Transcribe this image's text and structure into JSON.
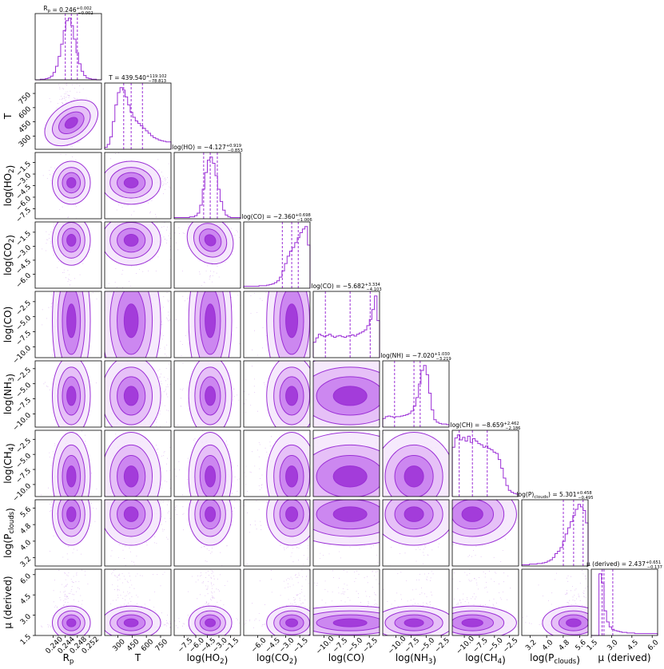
{
  "chart_data": {
    "type": "corner",
    "color": "#9b2fd6",
    "fill_colors": [
      "#f5e6fc",
      "#e3b9f6",
      "#c77cee",
      "#9b2fd6"
    ],
    "params": [
      {
        "key": "Rp",
        "xlabel": "R_p",
        "title": "R_p = 0.246^{+0.002}_{-0.002}",
        "title_parts": {
          "name": "R_p",
          "value": "0.246",
          "up": "+0.002",
          "down": "−0.002"
        },
        "range": [
          0.234,
          0.256
        ],
        "ticks": [
          0.24,
          0.244,
          0.248,
          0.252
        ],
        "tick_labels": [
          "0.240",
          "0.244",
          "0.248",
          "0.252"
        ],
        "median": 0.246,
        "q16": 0.244,
        "q84": 0.248,
        "hist": [
          0,
          0,
          1,
          1,
          2,
          3,
          6,
          12,
          22,
          38,
          58,
          80,
          96,
          100,
          88,
          66,
          44,
          26,
          14,
          7,
          3,
          2,
          1,
          1,
          0,
          0
        ]
      },
      {
        "key": "T",
        "xlabel": "T",
        "title": "T = 439.540^{+119.102}_{-78.813}",
        "title_parts": {
          "name": "T",
          "value": "439.540",
          "up": "+119.102",
          "down": "−78.813"
        },
        "range": [
          160,
          860
        ],
        "ticks": [
          300,
          450,
          600,
          750
        ],
        "tick_labels": [
          "300",
          "450",
          "600",
          "750"
        ],
        "median": 439.54,
        "q16": 360.7,
        "q84": 558.6,
        "hist": [
          3,
          8,
          20,
          45,
          72,
          92,
          100,
          96,
          85,
          72,
          60,
          52,
          46,
          42,
          38,
          34,
          30,
          26,
          22,
          19,
          17,
          15,
          14,
          13,
          12,
          12
        ]
      },
      {
        "key": "H2O",
        "xlabel": "log(H2O)",
        "title": "log(H2O) = −4.127^{+0.919}_{-0.853}",
        "title_parts": {
          "name": "log(H2O)",
          "value": "−4.127",
          "up": "+0.919",
          "down": "−0.853"
        },
        "range": [
          -8.8,
          -0.2
        ],
        "ticks": [
          -7.5,
          -6.0,
          -4.5,
          -3.0,
          -1.5
        ],
        "tick_labels": [
          "−7.5",
          "−6.0",
          "−4.5",
          "−3.0",
          "−1.5"
        ],
        "median": -4.127,
        "q16": -4.98,
        "q84": -3.208,
        "hist": [
          2,
          2,
          2,
          2,
          2,
          2,
          3,
          3,
          5,
          9,
          22,
          48,
          75,
          95,
          100,
          90,
          70,
          48,
          28,
          14,
          6,
          3,
          2,
          2,
          2,
          2
        ]
      },
      {
        "key": "CO2",
        "xlabel": "log(CO2)",
        "title": "log(CO2) = −2.360^{+0.698}_{-1.006}",
        "title_parts": {
          "name": "log(CO2)",
          "value": "−2.360",
          "up": "+0.698",
          "down": "−1.006"
        },
        "range": [
          -7.5,
          -0.4
        ],
        "ticks": [
          -6.0,
          -4.5,
          -3.0,
          -1.5
        ],
        "tick_labels": [
          "−6.0",
          "−4.5",
          "−3.0",
          "−1.5"
        ],
        "median": -2.36,
        "q16": -3.366,
        "q84": -1.662,
        "hist": [
          3,
          3,
          3,
          3,
          3,
          3,
          4,
          4,
          4,
          5,
          6,
          7,
          9,
          12,
          18,
          28,
          40,
          52,
          60,
          66,
          74,
          82,
          90,
          96,
          100,
          70
        ]
      },
      {
        "key": "CO",
        "xlabel": "log(CO)",
        "title": "log(CO) = −5.682^{+3.334}_{-4.103}",
        "title_parts": {
          "name": "log(CO)",
          "value": "−5.682",
          "up": "+3.334",
          "down": "−4.103"
        },
        "range": [
          -11.8,
          -0.8
        ],
        "ticks": [
          -10.0,
          -7.5,
          -5.0,
          -2.5
        ],
        "tick_labels": [
          "−10.0",
          "−7.5",
          "−5.0",
          "−2.5"
        ],
        "median": -5.682,
        "q16": -9.785,
        "q84": -2.348,
        "hist": [
          25,
          32,
          38,
          36,
          34,
          36,
          38,
          35,
          33,
          35,
          36,
          34,
          33,
          35,
          36,
          37,
          35,
          38,
          40,
          42,
          45,
          52,
          62,
          78,
          100,
          60
        ]
      },
      {
        "key": "NH3",
        "xlabel": "log(NH3)",
        "title": "log(NH3) = −7.020^{+1.030}_{-3.219}",
        "title_parts": {
          "name": "log(NH3)",
          "value": "−7.020",
          "up": "+1.030",
          "down": "−3.219"
        },
        "range": [
          -12.2,
          -1.2
        ],
        "ticks": [
          -10.0,
          -7.5,
          -5.0,
          -2.5
        ],
        "tick_labels": [
          "−10.0",
          "−7.5",
          "−5.0",
          "−2.5"
        ],
        "median": -7.02,
        "q16": -10.239,
        "q84": -5.99,
        "hist": [
          14,
          17,
          18,
          17,
          16,
          17,
          17,
          18,
          19,
          20,
          22,
          26,
          34,
          48,
          70,
          92,
          100,
          85,
          55,
          28,
          12,
          8,
          6,
          5,
          5,
          4
        ]
      },
      {
        "key": "CH4",
        "xlabel": "log(CH4)",
        "title": "log(CH4) = −8.659^{+2.462}_{-2.186}",
        "title_parts": {
          "name": "log(CH4)",
          "value": "−8.659",
          "up": "+2.462",
          "down": "−2.186"
        },
        "range": [
          -12.0,
          -1.0
        ],
        "ticks": [
          -10.0,
          -7.5,
          -5.0,
          -2.5
        ],
        "tick_labels": [
          "−10.0",
          "−7.5",
          "−5.0",
          "−2.5"
        ],
        "median": -8.659,
        "q16": -10.845,
        "q84": -6.197,
        "hist": [
          80,
          95,
          100,
          92,
          96,
          90,
          98,
          88,
          94,
          90,
          86,
          84,
          80,
          82,
          78,
          76,
          72,
          70,
          60,
          46,
          30,
          18,
          10,
          7,
          5,
          4
        ]
      },
      {
        "key": "Pclouds",
        "xlabel": "log(P_clouds)",
        "title": "log(P_clouds) = 5.301^{+0.458}_{-0.495}",
        "title_parts": {
          "name": "log(P_clouds)",
          "value": "5.301",
          "up": "+0.458",
          "down": "−0.495"
        },
        "range": [
          2.8,
          6.0
        ],
        "ticks": [
          3.2,
          4.0,
          4.8,
          5.6
        ],
        "tick_labels": [
          "3.2",
          "4.0",
          "4.8",
          "5.6"
        ],
        "median": 5.301,
        "q16": 4.806,
        "q84": 5.759,
        "hist": [
          2,
          2,
          2,
          3,
          3,
          3,
          4,
          4,
          5,
          6,
          8,
          10,
          14,
          20,
          24,
          30,
          40,
          52,
          62,
          72,
          82,
          92,
          100,
          96,
          90,
          70
        ]
      },
      {
        "key": "mu",
        "xlabel": "μ (derived)",
        "title": "μ (derived) = 2.437^{+0.651}_{-0.137}",
        "title_parts": {
          "name": "μ (derived)",
          "value": "2.437",
          "up": "+0.651",
          "down": "−0.137"
        },
        "range": [
          1.5,
          6.4
        ],
        "ticks": [
          1.5,
          3.0,
          4.5,
          6.0
        ],
        "tick_labels": [
          "1.5",
          "3.0",
          "4.5",
          "6.0"
        ],
        "median": 2.437,
        "q16": 2.3,
        "q84": 3.088,
        "hist": [
          0,
          0,
          0,
          100,
          85,
          40,
          22,
          14,
          10,
          8,
          7,
          6,
          5,
          5,
          4,
          4,
          4,
          3,
          3,
          3,
          3,
          3,
          3,
          3,
          3,
          3
        ]
      }
    ],
    "ylabels": {
      "T": "T",
      "H2O": "log(H2O)",
      "CO2": "log(CO2)",
      "CO": "log(CO)",
      "NH3": "log(NH3)",
      "CH4": "log(CH4)",
      "Pclouds": "log(P_clouds)",
      "mu": "μ (derived)"
    },
    "y_tick_labels": {
      "T": [
        "300",
        "450",
        "600",
        "750"
      ],
      "H2O": [
        "−7.5",
        "−6.0",
        "−4.5",
        "−3.0",
        "−1.5"
      ],
      "CO2": [
        "−6.0",
        "−4.5",
        "−3.0",
        "−1.5"
      ],
      "CO": [
        "−10.0",
        "−7.5",
        "−5.0",
        "−2.5"
      ],
      "NH3": [
        "−10.0",
        "−7.5",
        "−5.0",
        "−2.5"
      ],
      "CH4": [
        "−10.0",
        "−7.5",
        "−5.0",
        "−2.5"
      ],
      "Pclouds": [
        "3.2",
        "4.0",
        "4.8",
        "5.6"
      ],
      "mu": [
        "1.5",
        "3.0",
        "4.5",
        "6.0"
      ]
    }
  }
}
